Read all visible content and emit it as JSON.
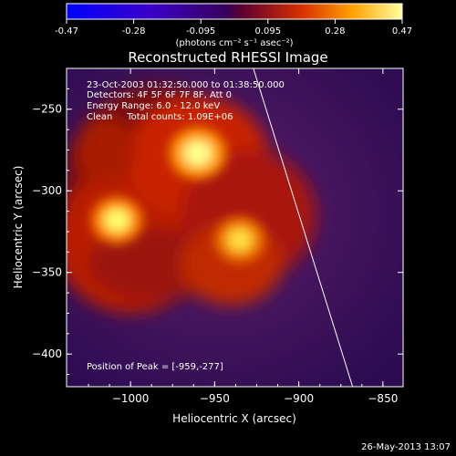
{
  "chart_data": {
    "type": "heatmap",
    "title": "Reconstructed RHESSI Image",
    "xlabel": "Heliocentric X (arcsec)",
    "ylabel": "Heliocentric Y (arcsec)",
    "x_range": [
      -1038,
      -838
    ],
    "y_range": [
      -420,
      -225
    ],
    "x_ticks": [
      -1000,
      -950,
      -900,
      -850
    ],
    "y_ticks": [
      -250,
      -300,
      -350,
      -400
    ],
    "colorbar": {
      "range": [
        -0.47,
        0.47
      ],
      "tick_labels": [
        "-0.47",
        "-0.28",
        "-0.095",
        "0.095",
        "0.28",
        "0.47"
      ],
      "units_label": "(photons cm⁻² s⁻¹ asec⁻²)"
    },
    "sources": [
      {
        "x": -960,
        "y": -277,
        "peak": 0.47
      },
      {
        "x": -1008,
        "y": -318,
        "peak": 0.38
      },
      {
        "x": -935,
        "y": -330,
        "peak": 0.36
      }
    ],
    "annotations": {
      "time": "23-Oct-2003 01:32:50.000 to 01:38:50.000",
      "detectors": "Detectors: 4F 5F 6F 7F 8F, Att 0",
      "energy": "Energy Range: 6.0 - 12.0 keV",
      "method": "Clean     Total counts: 1.09E+06",
      "peak": "Position of Peak = [-959,-277]"
    }
  },
  "footer": {
    "date": "26-May-2013 13:07"
  }
}
